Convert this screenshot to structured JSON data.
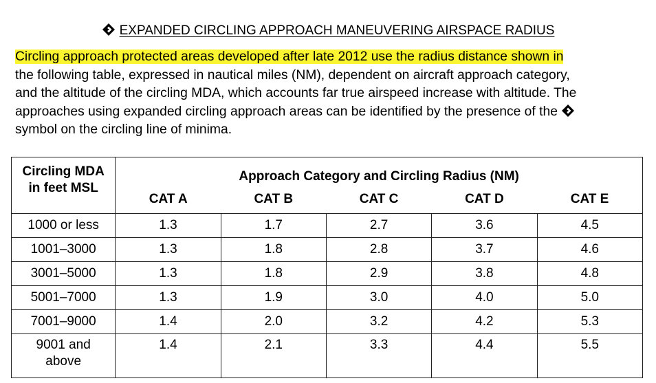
{
  "heading": {
    "diamond_icon": "diamond-symbol-icon",
    "title": "EXPANDED CIRCLING APPROACH MANEUVERING AIRSPACE RADIUS"
  },
  "paragraph": {
    "highlight_color": "#fbf431",
    "line1": "Circling approach protected areas developed after late 2012 use the radius distance shown in",
    "line2": "the following table, expressed in nautical miles (NM), dependent on aircraft approach category,",
    "line3": "and the altitude of the circling MDA, which accounts far true airspeed increase with altitude. The",
    "line4": "approaches using expanded circling approach areas can be identified by the presence of the",
    "line5": "symbol on the circling line of minima."
  },
  "table": {
    "header_row_label_line1": "Circling MDA",
    "header_row_label_line2": "in feet MSL",
    "group_header": "Approach Category and Circling Radius (NM)",
    "categories": [
      "CAT A",
      "CAT B",
      "CAT C",
      "CAT D",
      "CAT E"
    ],
    "rows": [
      {
        "mda": "1000 or less",
        "values": [
          "1.3",
          "1.7",
          "2.7",
          "3.6",
          "4.5"
        ]
      },
      {
        "mda": "1001–3000",
        "values": [
          "1.3",
          "1.8",
          "2.8",
          "3.7",
          "4.6"
        ]
      },
      {
        "mda": "3001–5000",
        "values": [
          "1.3",
          "1.8",
          "2.9",
          "3.8",
          "4.8"
        ]
      },
      {
        "mda": "5001–7000",
        "values": [
          "1.3",
          "1.9",
          "3.0",
          "4.0",
          "5.0"
        ]
      },
      {
        "mda": "7001–9000",
        "values": [
          "1.4",
          "2.0",
          "3.2",
          "4.2",
          "5.3"
        ]
      },
      {
        "mda_line1": "9001 and",
        "mda_line2": "above",
        "values": [
          "1.4",
          "2.1",
          "3.3",
          "4.4",
          "5.5"
        ]
      }
    ]
  }
}
